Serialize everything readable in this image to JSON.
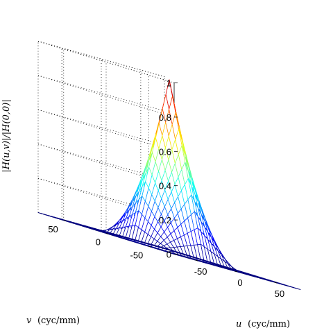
{
  "chart_data": {
    "type": "surface",
    "title": "",
    "zlabel": "|H(u,v)|/|H(0,0)|",
    "xlabel_var": "u",
    "xlabel_unit": "(cyc/mm)",
    "ylabel_var": "v",
    "ylabel_unit": "(cyc/mm)",
    "zlim": [
      0,
      1
    ],
    "xlim": [
      -80,
      80
    ],
    "ylim": [
      -80,
      80
    ],
    "z_ticks": [
      "0",
      "0.2",
      "0.4",
      "0.6",
      "0.8",
      "1"
    ],
    "u_ticks": [
      "-50",
      "0",
      "50"
    ],
    "v_ticks": [
      "-50",
      "0",
      "50"
    ],
    "grid": true,
    "colormap": "jet",
    "mesh_lines": 41,
    "surface": "triangular frequency response peaking at 1 at u=0, v=0; near zero for |u| or |v| > 45",
    "peak": 1
  }
}
